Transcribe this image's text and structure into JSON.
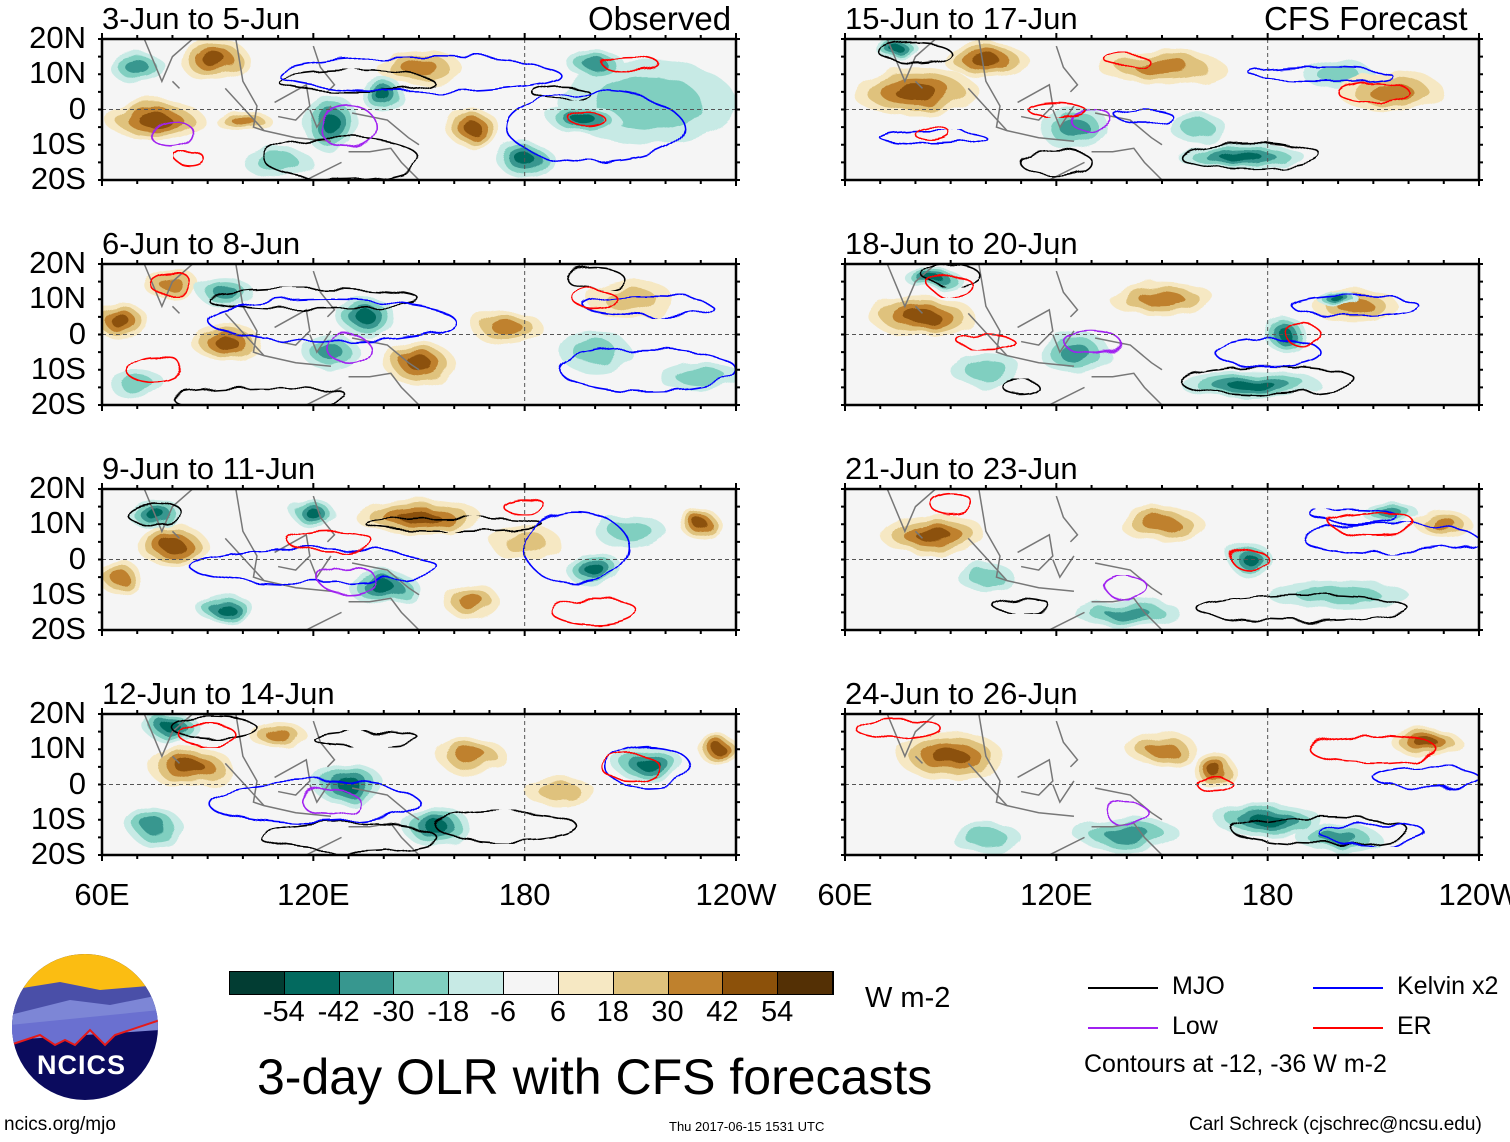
{
  "header": {
    "observed_label": "Observed",
    "forecast_label": "CFS Forecast"
  },
  "chart_data": {
    "type": "heatmap",
    "title": "3-day OLR with CFS forecasts",
    "units": "W m-2",
    "x_ticks": [
      "60E",
      "120E",
      "180",
      "120W"
    ],
    "y_ticks": [
      "20N",
      "10N",
      "0",
      "10S",
      "20S"
    ],
    "xlim_deg_east": [
      60,
      240
    ],
    "ylim_deg": [
      -20,
      20
    ],
    "colorbar": {
      "levels": [
        -54,
        -42,
        -30,
        -18,
        -6,
        6,
        18,
        30,
        42,
        54
      ],
      "colors": [
        "#023d33",
        "#036a5f",
        "#37978f",
        "#80cfc0",
        "#c7eae5",
        "#f5f5f5",
        "#f6e8c3",
        "#dfc27d",
        "#bf812d",
        "#8c510a",
        "#543005"
      ]
    },
    "legend": {
      "items": [
        {
          "label": "MJO",
          "color": "#000000"
        },
        {
          "label": "Kelvin x2",
          "color": "#0000ff"
        },
        {
          "label": "Low",
          "color": "#a020f0"
        },
        {
          "label": "ER",
          "color": "#ff0000"
        }
      ],
      "note": "Contours at -12, -36 W m-2"
    },
    "panels": [
      {
        "title": "3-Jun to 5-Jun",
        "kind": "observed",
        "anomalies": [
          [
            75,
            -3,
            14,
            6,
            50
          ],
          [
            92,
            14,
            10,
            6,
            42
          ],
          [
            150,
            12,
            12,
            5,
            30
          ],
          [
            165,
            -5,
            7,
            6,
            42
          ],
          [
            125,
            -4,
            8,
            8,
            -54
          ],
          [
            140,
            4,
            6,
            5,
            -42
          ],
          [
            197,
            -3,
            10,
            4,
            -42
          ],
          [
            200,
            13,
            8,
            4,
            -30
          ],
          [
            180,
            -14,
            8,
            5,
            -42
          ],
          [
            215,
            2,
            25,
            12,
            -18
          ],
          [
            70,
            12,
            8,
            4,
            -30
          ],
          [
            110,
            -15,
            10,
            4,
            -18
          ],
          [
            100,
            -3,
            8,
            3,
            30
          ]
        ],
        "contours": [
          [
            "MJO",
            132,
            8,
            22,
            3
          ],
          [
            "MJO",
            128,
            -14,
            22,
            6
          ],
          [
            "MJO",
            190,
            5,
            8,
            2
          ],
          [
            "Kelvin",
            150,
            10,
            40,
            5
          ],
          [
            "Kelvin",
            200,
            -5,
            25,
            10
          ],
          [
            "Low",
            130,
            -5,
            8,
            6
          ],
          [
            "Low",
            80,
            -7,
            6,
            4
          ],
          [
            "ER",
            210,
            13,
            8,
            2
          ],
          [
            "ER",
            198,
            -3,
            5,
            2
          ],
          [
            "ER",
            85,
            -14,
            4,
            2
          ]
        ]
      },
      {
        "title": "6-Jun to 8-Jun",
        "kind": "observed",
        "anomalies": [
          [
            65,
            4,
            8,
            5,
            42
          ],
          [
            95,
            -2,
            10,
            5,
            42
          ],
          [
            80,
            14,
            8,
            4,
            30
          ],
          [
            150,
            -8,
            10,
            6,
            42
          ],
          [
            175,
            2,
            10,
            5,
            30
          ],
          [
            135,
            5,
            8,
            6,
            -42
          ],
          [
            125,
            -5,
            8,
            5,
            -30
          ],
          [
            95,
            12,
            8,
            4,
            -30
          ],
          [
            70,
            -14,
            8,
            4,
            -18
          ],
          [
            210,
            10,
            12,
            6,
            18
          ],
          [
            200,
            -5,
            10,
            6,
            -18
          ],
          [
            230,
            -12,
            12,
            4,
            -18
          ]
        ],
        "contours": [
          [
            "MJO",
            120,
            10,
            30,
            3
          ],
          [
            "MJO",
            105,
            -18,
            25,
            3
          ],
          [
            "MJO",
            200,
            16,
            8,
            3
          ],
          [
            "Kelvin",
            125,
            4,
            35,
            6
          ],
          [
            "Kelvin",
            215,
            8,
            18,
            3
          ],
          [
            "Kelvin",
            215,
            -10,
            25,
            6
          ],
          [
            "Low",
            130,
            -4,
            6,
            4
          ],
          [
            "ER",
            75,
            -10,
            8,
            4
          ],
          [
            "ER",
            200,
            10,
            6,
            3
          ],
          [
            "ER",
            80,
            14,
            6,
            3
          ]
        ]
      },
      {
        "title": "9-Jun to 11-Jun",
        "kind": "observed",
        "anomalies": [
          [
            80,
            4,
            10,
            6,
            42
          ],
          [
            150,
            12,
            18,
            5,
            42
          ],
          [
            165,
            -12,
            8,
            5,
            30
          ],
          [
            65,
            -5,
            6,
            5,
            30
          ],
          [
            75,
            13,
            8,
            4,
            -54
          ],
          [
            120,
            13,
            6,
            4,
            -42
          ],
          [
            140,
            -8,
            10,
            5,
            -42
          ],
          [
            95,
            -14,
            8,
            4,
            -42
          ],
          [
            200,
            -3,
            8,
            5,
            -42
          ],
          [
            210,
            8,
            10,
            5,
            -18
          ],
          [
            230,
            10,
            6,
            4,
            42
          ],
          [
            180,
            5,
            10,
            5,
            18
          ]
        ],
        "contours": [
          [
            "MJO",
            160,
            10,
            25,
            2
          ],
          [
            "MJO",
            75,
            13,
            8,
            3
          ],
          [
            "Kelvin",
            120,
            -2,
            35,
            5
          ],
          [
            "Kelvin",
            195,
            3,
            15,
            10
          ],
          [
            "Low",
            130,
            -6,
            8,
            4
          ],
          [
            "ER",
            200,
            -15,
            12,
            4
          ],
          [
            "ER",
            125,
            5,
            12,
            3
          ],
          [
            "ER",
            180,
            15,
            6,
            2
          ]
        ]
      },
      {
        "title": "12-Jun to 14-Jun",
        "kind": "observed",
        "anomalies": [
          [
            85,
            5,
            12,
            6,
            48
          ],
          [
            110,
            14,
            8,
            4,
            30
          ],
          [
            165,
            8,
            10,
            5,
            30
          ],
          [
            75,
            -12,
            8,
            5,
            -30
          ],
          [
            80,
            16,
            8,
            4,
            -42
          ],
          [
            130,
            0,
            10,
            6,
            -42
          ],
          [
            155,
            -12,
            10,
            5,
            -42
          ],
          [
            215,
            6,
            10,
            5,
            -42
          ],
          [
            190,
            -2,
            10,
            4,
            18
          ],
          [
            235,
            10,
            6,
            4,
            42
          ]
        ],
        "contours": [
          [
            "MJO",
            92,
            16,
            12,
            3
          ],
          [
            "MJO",
            130,
            -15,
            25,
            4
          ],
          [
            "MJO",
            175,
            -12,
            20,
            4
          ],
          [
            "MJO",
            135,
            13,
            15,
            2
          ],
          [
            "Kelvin",
            120,
            -5,
            30,
            6
          ],
          [
            "Kelvin",
            215,
            5,
            12,
            6
          ],
          [
            "Low",
            125,
            -5,
            8,
            4
          ],
          [
            "ER",
            210,
            5,
            8,
            4
          ],
          [
            "ER",
            90,
            14,
            8,
            3
          ]
        ]
      },
      {
        "title": "15-Jun to 17-Jun",
        "kind": "forecast",
        "anomalies": [
          [
            80,
            5,
            18,
            7,
            48
          ],
          [
            100,
            14,
            12,
            5,
            42
          ],
          [
            150,
            12,
            18,
            5,
            30
          ],
          [
            215,
            5,
            15,
            6,
            30
          ],
          [
            125,
            -5,
            10,
            6,
            -30
          ],
          [
            172,
            -13,
            18,
            4,
            -54
          ],
          [
            75,
            17,
            6,
            3,
            -42
          ],
          [
            200,
            10,
            10,
            4,
            -18
          ],
          [
            160,
            -5,
            8,
            4,
            -18
          ]
        ],
        "contours": [
          [
            "MJO",
            80,
            16,
            10,
            3
          ],
          [
            "MJO",
            175,
            -13,
            20,
            4
          ],
          [
            "MJO",
            120,
            -15,
            10,
            4
          ],
          [
            "Kelvin",
            195,
            10,
            20,
            2
          ],
          [
            "Kelvin",
            145,
            -2,
            8,
            2
          ],
          [
            "Kelvin",
            85,
            -8,
            15,
            2
          ],
          [
            "Low",
            130,
            -3,
            6,
            3
          ],
          [
            "ER",
            210,
            5,
            10,
            3
          ],
          [
            "ER",
            140,
            14,
            6,
            2
          ],
          [
            "ER",
            120,
            0,
            8,
            2
          ],
          [
            "ER",
            85,
            -7,
            5,
            2
          ]
        ]
      },
      {
        "title": "18-Jun to 20-Jun",
        "kind": "forecast",
        "anomalies": [
          [
            82,
            5,
            15,
            6,
            48
          ],
          [
            150,
            10,
            15,
            5,
            30
          ],
          [
            205,
            8,
            12,
            5,
            30
          ],
          [
            185,
            0,
            6,
            5,
            -54
          ],
          [
            125,
            -5,
            10,
            6,
            -30
          ],
          [
            175,
            -14,
            20,
            4,
            -42
          ],
          [
            85,
            16,
            8,
            3,
            -42
          ],
          [
            200,
            10,
            6,
            2,
            -42
          ],
          [
            100,
            -10,
            10,
            5,
            -18
          ]
        ],
        "contours": [
          [
            "MJO",
            90,
            17,
            8,
            3
          ],
          [
            "MJO",
            180,
            -13,
            25,
            4
          ],
          [
            "MJO",
            110,
            -15,
            5,
            2
          ],
          [
            "Kelvin",
            205,
            8,
            18,
            3
          ],
          [
            "Kelvin",
            180,
            -5,
            15,
            4
          ],
          [
            "Low",
            130,
            -2,
            8,
            3
          ],
          [
            "ER",
            100,
            -2,
            8,
            2
          ],
          [
            "ER",
            190,
            0,
            5,
            3
          ],
          [
            "ER",
            90,
            14,
            6,
            3
          ]
        ]
      },
      {
        "title": "21-Jun to 23-Jun",
        "kind": "forecast",
        "anomalies": [
          [
            85,
            7,
            15,
            6,
            54
          ],
          [
            150,
            10,
            12,
            5,
            30
          ],
          [
            230,
            10,
            8,
            4,
            30
          ],
          [
            175,
            0,
            6,
            5,
            -42
          ],
          [
            140,
            -15,
            15,
            4,
            -30
          ],
          [
            200,
            -10,
            20,
            4,
            -18
          ],
          [
            100,
            -5,
            8,
            4,
            -18
          ],
          [
            215,
            13,
            8,
            3,
            -30
          ]
        ],
        "contours": [
          [
            "MJO",
            190,
            -14,
            30,
            4
          ],
          [
            "MJO",
            110,
            -13,
            8,
            2
          ],
          [
            "Kelvin",
            215,
            6,
            25,
            4
          ],
          [
            "Kelvin",
            205,
            12,
            12,
            2
          ],
          [
            "Low",
            140,
            -8,
            6,
            3
          ],
          [
            "ER",
            210,
            10,
            12,
            3
          ],
          [
            "ER",
            175,
            0,
            5,
            3
          ],
          [
            "ER",
            90,
            16,
            6,
            3
          ]
        ]
      },
      {
        "title": "24-Jun to 26-Jun",
        "kind": "forecast",
        "anomalies": [
          [
            90,
            8,
            15,
            7,
            54
          ],
          [
            150,
            10,
            10,
            5,
            30
          ],
          [
            165,
            4,
            6,
            5,
            42
          ],
          [
            225,
            12,
            10,
            4,
            42
          ],
          [
            180,
            -10,
            15,
            5,
            -42
          ],
          [
            140,
            -14,
            15,
            5,
            -30
          ],
          [
            200,
            -15,
            12,
            4,
            -30
          ],
          [
            100,
            -15,
            10,
            4,
            -18
          ]
        ],
        "contours": [
          [
            "MJO",
            195,
            -13,
            25,
            4
          ],
          [
            "Kelvin",
            210,
            -14,
            15,
            3
          ],
          [
            "Kelvin",
            225,
            2,
            15,
            3
          ],
          [
            "Low",
            140,
            -8,
            6,
            3
          ],
          [
            "ER",
            210,
            10,
            18,
            4
          ],
          [
            "ER",
            165,
            0,
            5,
            2
          ],
          [
            "ER",
            75,
            16,
            12,
            3
          ]
        ]
      }
    ]
  },
  "footer": {
    "logo_text": "NCICS",
    "url": "ncics.org/mjo",
    "timestamp": "Thu 2017-06-15 1531 UTC",
    "credit": "Carl Schreck (cjschrec@ncsu.edu)"
  }
}
